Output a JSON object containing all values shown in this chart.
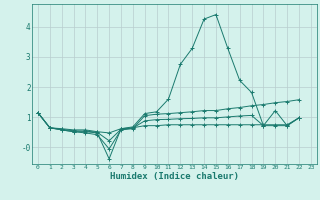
{
  "title": "",
  "xlabel": "Humidex (Indice chaleur)",
  "bg_color": "#d4f2ec",
  "line_color": "#1a7a6e",
  "grid_color": "#b8cece",
  "xlim": [
    -0.5,
    23.5
  ],
  "ylim": [
    -0.55,
    4.75
  ],
  "ytick_vals": [
    0,
    1,
    2,
    3,
    4
  ],
  "ytick_labels": [
    "-0",
    "1",
    "2",
    "3",
    "4"
  ],
  "xtick_labels": [
    "0",
    "1",
    "2",
    "3",
    "4",
    "5",
    "6",
    "7",
    "8",
    "9",
    "10",
    "11",
    "12",
    "13",
    "14",
    "15",
    "16",
    "17",
    "18",
    "19",
    "20",
    "21",
    "22",
    "23"
  ],
  "series": [
    [
      1.15,
      0.65,
      0.58,
      0.52,
      0.52,
      0.48,
      -0.38,
      0.62,
      0.68,
      1.12,
      1.18,
      1.6,
      2.75,
      3.28,
      4.25,
      4.4,
      3.28,
      2.22,
      1.82,
      0.72,
      1.22,
      0.72,
      0.98,
      null
    ],
    [
      1.15,
      0.65,
      0.58,
      0.52,
      0.48,
      0.42,
      -0.05,
      0.58,
      0.62,
      1.05,
      1.1,
      1.12,
      1.15,
      1.18,
      1.22,
      1.22,
      1.28,
      1.32,
      1.38,
      1.42,
      1.48,
      1.52,
      1.58,
      null
    ],
    [
      1.15,
      0.65,
      0.62,
      0.58,
      0.58,
      0.52,
      0.48,
      0.62,
      0.65,
      0.72,
      0.72,
      0.75,
      0.75,
      0.75,
      0.75,
      0.75,
      0.75,
      0.75,
      0.75,
      0.75,
      0.75,
      0.75,
      0.98,
      null
    ],
    [
      1.15,
      0.65,
      0.6,
      0.55,
      0.54,
      0.5,
      0.22,
      0.6,
      0.64,
      0.88,
      0.92,
      0.93,
      0.95,
      0.96,
      0.98,
      0.98,
      1.01,
      1.04,
      1.06,
      0.72,
      0.72,
      0.72,
      0.98,
      null
    ]
  ]
}
